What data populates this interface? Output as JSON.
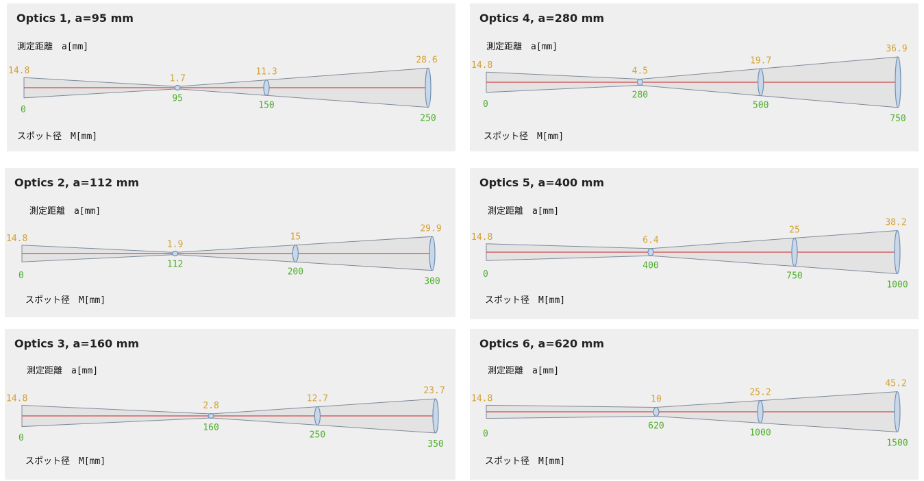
{
  "labels": {
    "distance": "測定距離　a[mm]",
    "spot": "スポット径　M[mm]"
  },
  "colors": {
    "panel_bg": "#efefef",
    "beam_fill": "#e3e3e3",
    "beam_stroke": "#7f8a99",
    "axis_line": "#cc2222",
    "lens_fill": "#c9d8e8",
    "lens_stroke": "#6f8fb5",
    "spot_value": "#d4a030",
    "distance_value": "#4caf2a"
  },
  "panels": [
    {
      "title": "Optics 1, a=95 mm",
      "points": [
        {
          "d": "0",
          "m": "14.8"
        },
        {
          "d": "95",
          "m": "1.7"
        },
        {
          "d": "150",
          "m": "11.3"
        },
        {
          "d": "250",
          "m": "28.6"
        }
      ]
    },
    {
      "title": "Optics 4, a=280 mm",
      "points": [
        {
          "d": "0",
          "m": "14.8"
        },
        {
          "d": "280",
          "m": "4.5"
        },
        {
          "d": "500",
          "m": "19.7"
        },
        {
          "d": "750",
          "m": "36.9"
        }
      ]
    },
    {
      "title": "Optics 2, a=112 mm",
      "points": [
        {
          "d": "0",
          "m": "14.8"
        },
        {
          "d": "112",
          "m": "1.9"
        },
        {
          "d": "200",
          "m": "15"
        },
        {
          "d": "300",
          "m": "29.9"
        }
      ]
    },
    {
      "title": "Optics 5, a=400 mm",
      "points": [
        {
          "d": "0",
          "m": "14.8"
        },
        {
          "d": "400",
          "m": "6.4"
        },
        {
          "d": "750",
          "m": "25"
        },
        {
          "d": "1000",
          "m": "38.2"
        }
      ]
    },
    {
      "title": "Optics 3, a=160 mm",
      "points": [
        {
          "d": "0",
          "m": "14.8"
        },
        {
          "d": "160",
          "m": "2.8"
        },
        {
          "d": "250",
          "m": "12.7"
        },
        {
          "d": "350",
          "m": "23.7"
        }
      ]
    },
    {
      "title": "Optics 6, a=620 mm",
      "points": [
        {
          "d": "0",
          "m": "14.8"
        },
        {
          "d": "620",
          "m": "10"
        },
        {
          "d": "1000",
          "m": "25.2"
        },
        {
          "d": "1500",
          "m": "45.2"
        }
      ]
    }
  ]
}
